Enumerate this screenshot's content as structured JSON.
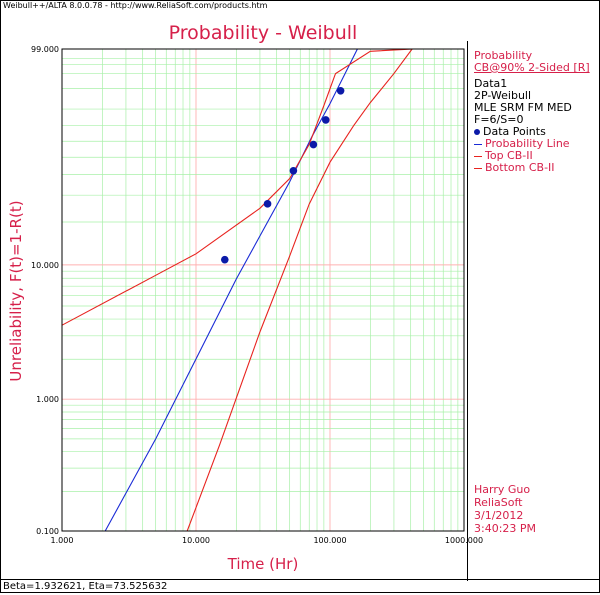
{
  "header": {
    "window_title": "Weibull++/ALTA 8.0.0.78 - http://www.ReliaSoft.com/products.htm"
  },
  "legend": {
    "title": "Probability",
    "cb_type": "CB@90% 2-Sided [R]",
    "dataset": "Data1",
    "model": "2P-Weibull",
    "method": "MLE SRM FM MED",
    "counts": "F=6/S=0",
    "items": [
      "Data Points",
      "Probability Line",
      "Top CB-II",
      "Bottom CB-II"
    ]
  },
  "footer_block": {
    "user": "Harry Guo",
    "company": "ReliaSoft",
    "date": "3/1/2012",
    "time": "3:40:23 PM"
  },
  "status_bar": {
    "text": "Beta=1.932621, Eta=73.525632"
  },
  "colors": {
    "accent": "#d6204a",
    "series_blue": "#1a2bd6",
    "cb_red": "#e8231f",
    "point": "#0b1aa8",
    "grid_major": "#ffb0b0",
    "grid_minor": "#a8f0a8"
  },
  "chart_data": {
    "type": "scatter",
    "title": "Probability - Weibull",
    "xlabel": "Time (Hr)",
    "ylabel": "Unreliability, F(t)=1-R(t)",
    "x_scale": "log",
    "y_scale": "weibull",
    "xlim": [
      1,
      1000
    ],
    "ylim": [
      0.1,
      99
    ],
    "x_tick_labels": [
      "1.000",
      "10.000",
      "100.000",
      "1000.000"
    ],
    "x_tick_values": [
      1,
      10,
      100,
      1000
    ],
    "y_tick_labels": [
      "0.100",
      "1.000",
      "10.000",
      "99.000"
    ],
    "y_tick_values": [
      0.1,
      1,
      10,
      99
    ],
    "grid": true,
    "beta": 1.932621,
    "eta": 73.525632,
    "series": [
      {
        "name": "Data Points",
        "kind": "points",
        "points": [
          [
            16.4,
            10.9
          ],
          [
            34.2,
            26.4
          ],
          [
            53.3,
            42.1
          ],
          [
            75.2,
            57.9
          ],
          [
            93.0,
            73.6
          ],
          [
            120.0,
            89.1
          ]
        ]
      },
      {
        "name": "Probability Line",
        "kind": "line",
        "points": [
          [
            2.1,
            0.1
          ],
          [
            5,
            0.5
          ],
          [
            20,
            7.9
          ],
          [
            50,
            36.3
          ],
          [
            73.5,
            63.2
          ],
          [
            100,
            83.0
          ],
          [
            160,
            99
          ]
        ]
      },
      {
        "name": "Top CB-II",
        "kind": "line",
        "points": [
          [
            1,
            3.6
          ],
          [
            5,
            8.4
          ],
          [
            10,
            12.0
          ],
          [
            30,
            24.7
          ],
          [
            50,
            38.0
          ],
          [
            70,
            58.0
          ],
          [
            90,
            82.0
          ],
          [
            110,
            95.0
          ],
          [
            200,
            98.8
          ],
          [
            420,
            99.0
          ]
        ]
      },
      {
        "name": "Bottom CB-II",
        "kind": "line",
        "points": [
          [
            8.6,
            0.1
          ],
          [
            15,
            0.45
          ],
          [
            30,
            3.2
          ],
          [
            50,
            11.6
          ],
          [
            70,
            26.3
          ],
          [
            100,
            47.0
          ],
          [
            150,
            70.0
          ],
          [
            200,
            83.5
          ],
          [
            300,
            95.0
          ],
          [
            410,
            99.0
          ]
        ]
      }
    ]
  }
}
